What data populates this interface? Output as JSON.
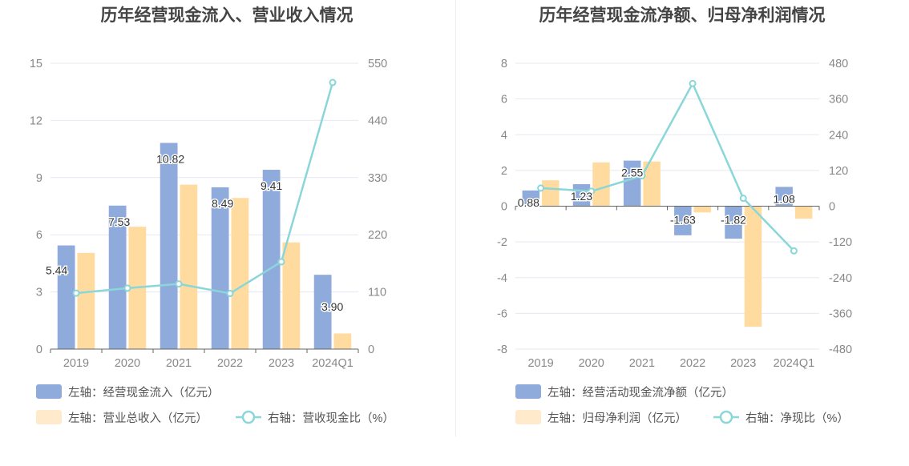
{
  "colors": {
    "bar_primary": "#8eabdc",
    "bar_secondary": "#ffdba0",
    "line": "#8ad6d8",
    "grid": "#e6e8f2",
    "axis": "#666666"
  },
  "chart_data": [
    {
      "type": "bar",
      "title": "历年经营现金流入、营业收入情况",
      "categories": [
        "2019",
        "2020",
        "2021",
        "2022",
        "2023",
        "2024Q1"
      ],
      "left_axis": {
        "min": 0,
        "max": 15,
        "ticks": [
          "0",
          "3",
          "6",
          "9",
          "12",
          "15"
        ]
      },
      "right_axis": {
        "min": 0,
        "max": 550,
        "ticks": [
          "0",
          "110",
          "220",
          "330",
          "440",
          "550"
        ]
      },
      "series": [
        {
          "name": "左轴：经营现金流入（亿元）",
          "kind": "bar",
          "axis": "left",
          "color": "#8eabdc",
          "values": [
            5.44,
            7.53,
            10.82,
            8.49,
            9.41,
            3.9
          ],
          "labels": [
            "5.44",
            "7.53",
            "10.82",
            "8.49",
            "9.41",
            "3.90"
          ]
        },
        {
          "name": "左轴：营业总收入（亿元）",
          "kind": "bar",
          "axis": "left",
          "color": "#ffdba0",
          "values": [
            5.05,
            6.42,
            8.63,
            7.93,
            5.6,
            0.82
          ]
        },
        {
          "name": "右轴：营收现金比（%）",
          "kind": "line",
          "axis": "right",
          "color": "#8ad6d8",
          "values": [
            107.7,
            117.3,
            125.4,
            107.1,
            168.0,
            513.0
          ]
        }
      ]
    },
    {
      "type": "bar",
      "title": "历年经营现金流净额、归母净利润情况",
      "categories": [
        "2019",
        "2020",
        "2021",
        "2022",
        "2023",
        "2024Q1"
      ],
      "left_axis": {
        "min": -8,
        "max": 8,
        "ticks": [
          "-8",
          "-6",
          "-4",
          "-2",
          "0",
          "2",
          "4",
          "6",
          "8"
        ]
      },
      "right_axis": {
        "min": -480,
        "max": 480,
        "ticks": [
          "-480",
          "-360",
          "-240",
          "-120",
          "0",
          "120",
          "240",
          "360",
          "480"
        ]
      },
      "series": [
        {
          "name": "左轴：经营活动现金流净额（亿元）",
          "kind": "bar",
          "axis": "left",
          "color": "#8eabdc",
          "values": [
            0.88,
            1.23,
            2.55,
            -1.63,
            -1.82,
            1.08
          ],
          "labels": [
            "0.88",
            "1.23",
            "2.55",
            "-1.63",
            "-1.82",
            "1.08"
          ]
        },
        {
          "name": "左轴：归母净利润（亿元）",
          "kind": "bar",
          "axis": "left",
          "color": "#ffdba0",
          "values": [
            1.45,
            2.45,
            2.5,
            -0.35,
            -6.75,
            -0.7
          ]
        },
        {
          "name": "右轴：净现比（%）",
          "kind": "line",
          "axis": "right",
          "color": "#8ad6d8",
          "values": [
            60.7,
            50.2,
            102.0,
            412.0,
            26.5,
            -150.0
          ]
        }
      ]
    }
  ]
}
